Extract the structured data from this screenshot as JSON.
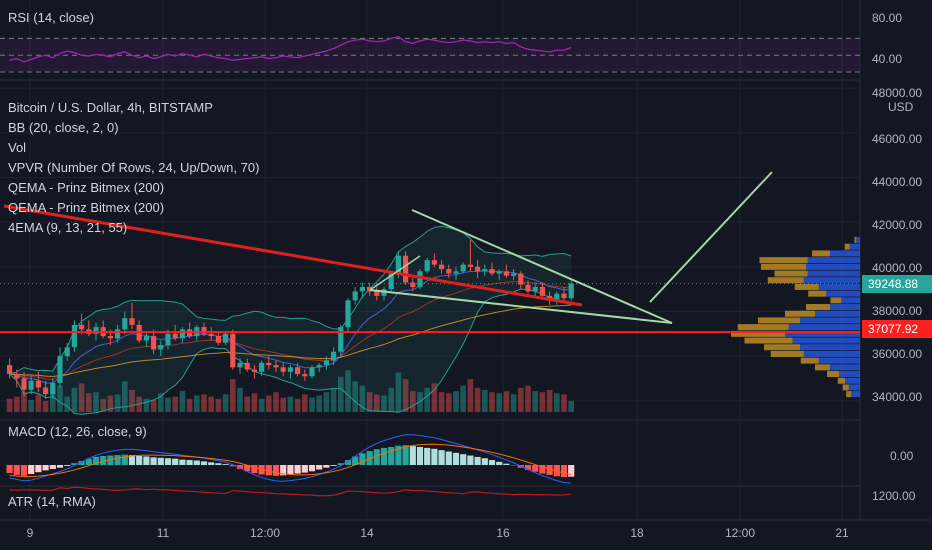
{
  "panes": {
    "rsi_title": "RSI (14, close)",
    "macd_title": "MACD (12, 26, close, 9)",
    "atr_title": "ATR (14, RMA)"
  },
  "legend": {
    "symbol": "Bitcoin / U.S. Dollar, 4h, BITSTAMP",
    "indicators": [
      "BB (20, close, 2, 0)",
      "Vol",
      "VPVR (Number Of Rows, 24, Up/Down, 70)",
      "QEMA - Prinz Bitmex (200)",
      "QEMA - Prinz Bitmex (200)",
      "4EMA (9, 13, 21, 55)"
    ]
  },
  "axes": {
    "currency": "USD",
    "rsi_ticks": [
      "80.00",
      "40.00"
    ],
    "price_ticks": [
      "48000.00",
      "46000.00",
      "44000.00",
      "42000.00",
      "40000.00",
      "38000.00",
      "36000.00",
      "34000.00"
    ],
    "macd_ticks": [
      "0.00"
    ],
    "atr_ticks": [
      "1200.00"
    ],
    "time_ticks": [
      "9",
      "11",
      "12:00",
      "14",
      "16",
      "18",
      "12:00",
      "21"
    ]
  },
  "price_labels": {
    "last": "39248.88",
    "level": "37077.92"
  },
  "colors": {
    "background": "#131722",
    "up": "#26a69a",
    "down": "#ef5350",
    "rsi": "#9c27b0",
    "support_line": "#ff1f1f",
    "trend_line": "#e02020",
    "drawing": "#a5d6a7",
    "bb": "#2a9d8f",
    "vpvr_up": "#2962ff",
    "vpvr_down": "#e0a526"
  },
  "chart_data": {
    "type": "candlestick",
    "title": "Bitcoin / U.S. Dollar, 4h, BITSTAMP",
    "ylim": [
      33500,
      48500
    ],
    "support_level": 37077.92,
    "last_price": 39248.88,
    "candles": [
      [
        35600,
        35900,
        35000,
        35200
      ],
      [
        35200,
        35400,
        34600,
        35000
      ],
      [
        35000,
        35300,
        34200,
        34500
      ],
      [
        34500,
        35100,
        34300,
        34900
      ],
      [
        34900,
        35300,
        34400,
        34600
      ],
      [
        34600,
        34900,
        34100,
        34300
      ],
      [
        34300,
        35000,
        34100,
        34800
      ],
      [
        34800,
        36400,
        34600,
        36000
      ],
      [
        36000,
        36600,
        35800,
        36400
      ],
      [
        36400,
        37600,
        36200,
        37400
      ],
      [
        37400,
        37900,
        37000,
        37200
      ],
      [
        37200,
        37600,
        36900,
        37000
      ],
      [
        37000,
        37500,
        36700,
        37300
      ],
      [
        37300,
        37600,
        36800,
        36900
      ],
      [
        36900,
        37200,
        36500,
        36800
      ],
      [
        36800,
        37400,
        36600,
        37200
      ],
      [
        37200,
        38000,
        37000,
        37700
      ],
      [
        37700,
        38400,
        37200,
        37400
      ],
      [
        37400,
        37600,
        36600,
        36700
      ],
      [
        36700,
        37100,
        36400,
        36900
      ],
      [
        36900,
        37200,
        36100,
        36300
      ],
      [
        36300,
        36700,
        36000,
        36500
      ],
      [
        36500,
        37200,
        36300,
        37000
      ],
      [
        37000,
        37400,
        36700,
        36800
      ],
      [
        36800,
        37300,
        36600,
        37200
      ],
      [
        37200,
        37500,
        36800,
        36900
      ],
      [
        36900,
        37400,
        36700,
        37300
      ],
      [
        37300,
        37500,
        36900,
        37000
      ],
      [
        37000,
        37300,
        36700,
        36900
      ],
      [
        36900,
        37100,
        36500,
        36600
      ],
      [
        36600,
        37100,
        36500,
        37000
      ],
      [
        37000,
        37200,
        35400,
        35500
      ],
      [
        35500,
        35900,
        35200,
        35700
      ],
      [
        35700,
        35900,
        35300,
        35400
      ],
      [
        35400,
        35600,
        35000,
        35300
      ],
      [
        35300,
        35800,
        35100,
        35700
      ],
      [
        35700,
        36000,
        35400,
        35600
      ],
      [
        35600,
        35800,
        35300,
        35500
      ],
      [
        35500,
        35700,
        35100,
        35300
      ],
      [
        35300,
        35600,
        35000,
        35500
      ],
      [
        35500,
        35700,
        35100,
        35200
      ],
      [
        35200,
        35400,
        34900,
        35100
      ],
      [
        35100,
        35600,
        35000,
        35500
      ],
      [
        35500,
        35700,
        35300,
        35600
      ],
      [
        35600,
        36000,
        35400,
        35800
      ],
      [
        35800,
        36400,
        35600,
        36200
      ],
      [
        36200,
        37400,
        36000,
        37300
      ],
      [
        37300,
        38600,
        37100,
        38500
      ],
      [
        38500,
        39100,
        38300,
        38900
      ],
      [
        38900,
        39300,
        38600,
        39100
      ],
      [
        39100,
        39300,
        38700,
        38900
      ],
      [
        38900,
        39100,
        38500,
        38700
      ],
      [
        38700,
        39100,
        38500,
        39000
      ],
      [
        39000,
        39800,
        38900,
        39700
      ],
      [
        39700,
        40700,
        39500,
        40500
      ],
      [
        40500,
        40700,
        39200,
        39300
      ],
      [
        39300,
        39500,
        38900,
        39100
      ],
      [
        39100,
        39900,
        39000,
        39800
      ],
      [
        39800,
        40400,
        39700,
        40300
      ],
      [
        40300,
        40600,
        40000,
        40100
      ],
      [
        40100,
        40300,
        39700,
        39900
      ],
      [
        39900,
        40100,
        39500,
        39700
      ],
      [
        39700,
        40000,
        39400,
        39800
      ],
      [
        39800,
        40200,
        39700,
        40100
      ],
      [
        40100,
        41200,
        39800,
        40000
      ],
      [
        40000,
        40300,
        39500,
        39800
      ],
      [
        39800,
        40100,
        39600,
        39900
      ],
      [
        39900,
        40200,
        39600,
        39700
      ],
      [
        39700,
        39900,
        39400,
        39800
      ],
      [
        39800,
        40100,
        39500,
        39600
      ],
      [
        39600,
        39900,
        39400,
        39700
      ],
      [
        39700,
        39800,
        39000,
        39200
      ],
      [
        39200,
        39400,
        38800,
        38900
      ],
      [
        38900,
        39300,
        38700,
        39100
      ],
      [
        39100,
        39300,
        38600,
        38700
      ],
      [
        38700,
        38900,
        38300,
        38500
      ],
      [
        38500,
        38900,
        38300,
        38800
      ],
      [
        38800,
        39100,
        38400,
        38600
      ],
      [
        38600,
        39400,
        38500,
        39248.88
      ]
    ],
    "rsi": [
      44,
      46,
      42,
      45,
      48,
      50,
      47,
      52,
      55,
      53,
      50,
      49,
      51,
      50,
      48,
      52,
      54,
      50,
      47,
      49,
      46,
      48,
      51,
      49,
      52,
      50,
      48,
      51,
      49,
      47,
      46,
      44,
      45,
      46,
      47,
      48,
      46,
      47,
      49,
      48,
      47,
      49,
      51,
      53,
      55,
      58,
      62,
      66,
      68,
      69,
      67,
      66,
      67,
      70,
      72,
      66,
      64,
      67,
      69,
      68,
      66,
      65,
      66,
      68,
      67,
      65,
      66,
      65,
      66,
      64,
      65,
      60,
      57,
      56,
      55,
      54,
      56,
      56,
      59
    ],
    "macd_hist": [
      -180,
      -220,
      -240,
      -200,
      -160,
      -120,
      -90,
      -60,
      -20,
      40,
      90,
      140,
      180,
      200,
      210,
      220,
      230,
      220,
      200,
      190,
      170,
      160,
      150,
      140,
      120,
      110,
      100,
      80,
      60,
      40,
      20,
      -30,
      -90,
      -140,
      -180,
      -210,
      -230,
      -240,
      -230,
      -210,
      -190,
      -170,
      -140,
      -100,
      -60,
      -20,
      40,
      110,
      190,
      260,
      310,
      350,
      380,
      400,
      430,
      440,
      420,
      400,
      380,
      360,
      330,
      300,
      270,
      240,
      210,
      180,
      150,
      110,
      70,
      30,
      -10,
      -60,
      -110,
      -150,
      -190,
      -220,
      -250,
      -270,
      -260
    ],
    "volume": [
      60,
      70,
      90,
      55,
      80,
      50,
      95,
      120,
      70,
      110,
      130,
      85,
      90,
      60,
      75,
      80,
      140,
      100,
      70,
      60,
      55,
      85,
      65,
      70,
      95,
      60,
      75,
      80,
      70,
      60,
      80,
      150,
      110,
      70,
      85,
      60,
      75,
      90,
      65,
      70,
      60,
      80,
      65,
      75,
      90,
      110,
      160,
      190,
      140,
      120,
      90,
      80,
      75,
      110,
      180,
      150,
      95,
      90,
      110,
      130,
      90,
      85,
      95,
      120,
      150,
      110,
      100,
      90,
      85,
      95,
      80,
      110,
      120,
      95,
      90,
      100,
      85,
      80,
      50
    ]
  }
}
